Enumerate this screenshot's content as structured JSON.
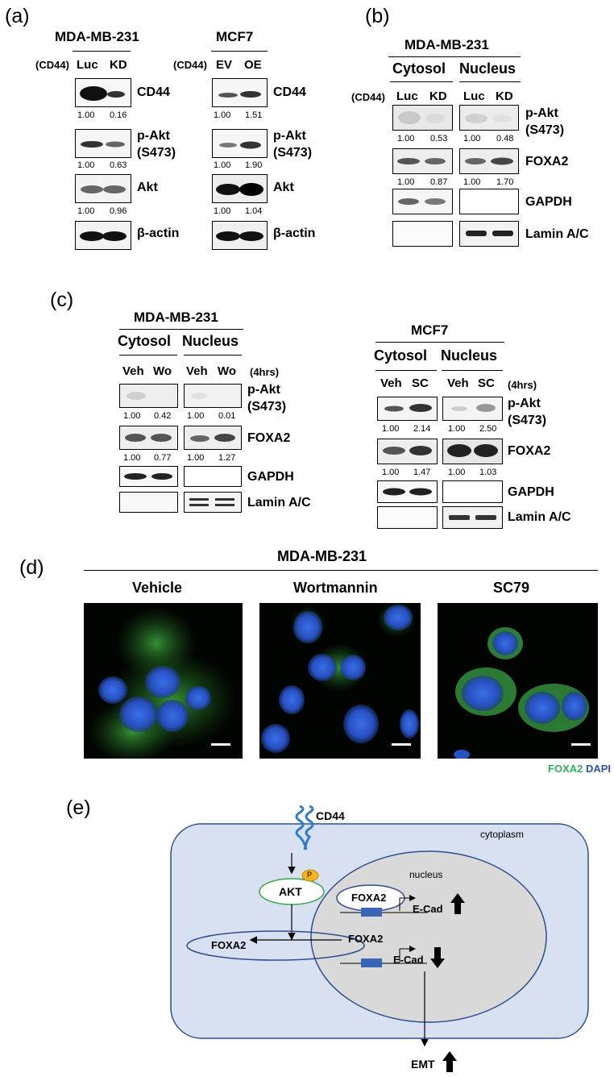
{
  "panel_a": {
    "label": "(a)",
    "left": {
      "title": "MDA-MB-231",
      "cond_label": "(CD44)",
      "lanes": [
        "Luc",
        "KD"
      ],
      "rows": [
        {
          "protein": "CD44",
          "quant": [
            "1.00",
            "0.16"
          ]
        },
        {
          "protein": "p-Akt",
          "protein2": "(S473)",
          "quant": [
            "1.00",
            "0.63"
          ]
        },
        {
          "protein": "Akt",
          "quant": [
            "1.00",
            "0.96"
          ]
        },
        {
          "protein": "β-actin"
        }
      ]
    },
    "right": {
      "title": "MCF7",
      "cond_label": "(CD44)",
      "lanes": [
        "EV",
        "OE"
      ],
      "rows": [
        {
          "protein": "CD44",
          "quant": [
            "1.00",
            "1.51"
          ]
        },
        {
          "protein": "p-Akt",
          "protein2": "(S473)",
          "quant": [
            "1.00",
            "1.90"
          ]
        },
        {
          "protein": "Akt",
          "quant": [
            "1.00",
            "1.04"
          ]
        },
        {
          "protein": "β-actin"
        }
      ]
    }
  },
  "panel_b": {
    "label": "(b)",
    "title": "MDA-MB-231",
    "cytosol": "Cytosol",
    "nucleus": "Nucleus",
    "cond_label": "(CD44)",
    "lanes": [
      "Luc",
      "KD",
      "Luc",
      "KD"
    ],
    "rows": [
      {
        "protein": "p-Akt",
        "protein2": "(S473)",
        "quant": [
          "1.00",
          "0.53",
          "1.00",
          "0.48"
        ]
      },
      {
        "protein": "FOXA2",
        "quant": [
          "1.00",
          "0.87",
          "1.00",
          "1.70"
        ]
      },
      {
        "protein": "GAPDH"
      },
      {
        "protein": "Lamin A/C"
      }
    ]
  },
  "panel_c": {
    "label": "(c)",
    "left": {
      "title": "MDA-MB-231",
      "cytosol": "Cytosol",
      "nucleus": "Nucleus",
      "time": "(4hrs)",
      "lanes": [
        "Veh",
        "Wo",
        "Veh",
        "Wo"
      ],
      "rows": [
        {
          "protein": "p-Akt",
          "protein2": "(S473)",
          "quant": [
            "1.00",
            "0.42",
            "1.00",
            "0.01"
          ]
        },
        {
          "protein": "FOXA2",
          "quant": [
            "1.00",
            "0.77",
            "1.00",
            "1.27"
          ]
        },
        {
          "protein": "GAPDH"
        },
        {
          "protein": "Lamin A/C"
        }
      ]
    },
    "right": {
      "title": "MCF7",
      "cytosol": "Cytosol",
      "nucleus": "Nucleus",
      "time": "(4hrs)",
      "lanes": [
        "Veh",
        "SC",
        "Veh",
        "SC"
      ],
      "rows": [
        {
          "protein": "p-Akt",
          "protein2": "(S473)",
          "quant": [
            "1.00",
            "2.14",
            "1.00",
            "2.50"
          ]
        },
        {
          "protein": "FOXA2",
          "quant": [
            "1.00",
            "1.47",
            "1.00",
            "1.03"
          ]
        },
        {
          "protein": "GAPDH"
        },
        {
          "protein": "Lamin A/C"
        }
      ]
    }
  },
  "panel_d": {
    "label": "(d)",
    "title": "MDA-MB-231",
    "conditions": [
      "Vehicle",
      "Wortmannin",
      "SC79"
    ],
    "legend_green": "FOXA2",
    "legend_blue": "DAPI"
  },
  "panel_e": {
    "label": "(e)",
    "cd44": "CD44",
    "cytoplasm": "cytoplasm",
    "p": "P",
    "akt": "AKT",
    "nucleus": "nucleus",
    "foxa2": "FOXA2",
    "ecad": "E-Cad",
    "emt": "EMT"
  }
}
